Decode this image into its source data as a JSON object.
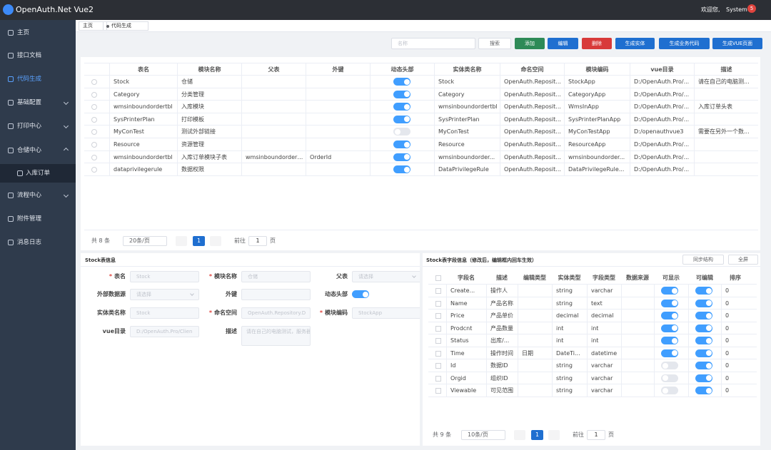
{
  "header": {
    "title": "OpenAuth.Net Vue2",
    "welcome": "欢迎您,",
    "user": "System",
    "badge": "5"
  },
  "sidebar": {
    "items": [
      "主页",
      "接口文档",
      "代码生成",
      "基础配置",
      "打印中心",
      "仓储中心",
      "入库订单",
      "流程中心",
      "附件管理",
      "消息日志"
    ]
  },
  "tabs": [
    "主页",
    "代码生成"
  ],
  "toolbar": {
    "search_placeholder": "名称",
    "buttons": [
      "搜索",
      "添加",
      "编辑",
      "删除",
      "生成实体",
      "生成业务代码",
      "生成VUE页面"
    ]
  },
  "table": {
    "columns": [
      "表名",
      "模块名称",
      "父表",
      "外键",
      "动态头部",
      "实体类名称",
      "命名空间",
      "模块编码",
      "vue目录",
      "描述"
    ],
    "rows": [
      [
        "Stock",
        "仓储",
        null,
        null,
        true,
        "Stock",
        "OpenAuth.Reposit...",
        "StockApp",
        "D:/OpenAuth.Pro/...",
        "请在自己的电脑测..."
      ],
      [
        "Category",
        "分类管理",
        null,
        null,
        true,
        "Category",
        "OpenAuth.Reposit...",
        "CategoryApp",
        "D:/OpenAuth.Pro/...",
        null
      ],
      [
        "wmsinboundordertbl",
        "入库模块",
        null,
        null,
        true,
        "wmsinboundordertbl",
        "OpenAuth.Reposit...",
        "WmsInApp",
        "D:/OpenAuth.Pro/...",
        "入库订单头表"
      ],
      [
        "SysPrinterPlan",
        "打印模板",
        null,
        null,
        true,
        "SysPrinterPlan",
        "OpenAuth.Reposit...",
        "SysPrinterPlanApp",
        "D:/OpenAuth.Pro/...",
        null
      ],
      [
        "MyConTest",
        "测试外部链接",
        null,
        null,
        false,
        "MyConTest",
        "OpenAuth.Reposit...",
        "MyConTestApp",
        "D:/openauthvue3",
        "需要在另外一个数..."
      ],
      [
        "Resource",
        "资源管理",
        null,
        null,
        true,
        "Resource",
        "OpenAuth.Reposit...",
        "ResourceApp",
        "D:/OpenAuth.Pro/...",
        null
      ],
      [
        "wmsinboundordertbl",
        "入库订单模块子表",
        "wmsinboundordertbl",
        "OrderId",
        true,
        "wmsinboundorder...",
        "OpenAuth.Reposit...",
        "wmsinboundorder...",
        "D:/OpenAuth.Pro/...",
        null
      ],
      [
        "dataprivilegerule",
        "数据权限",
        null,
        null,
        true,
        "DataPrivilegeRule",
        "OpenAuth.Reposit...",
        "DataPrivilegeRule...",
        "D:/OpenAuth.Pro/...",
        null
      ]
    ],
    "pagination": {
      "total": "共 8 条",
      "page_size": "20条/页",
      "page": "1",
      "goto": "前往",
      "goto_value": "1",
      "unit": "页"
    }
  },
  "form": {
    "title": "Stock表信息",
    "fields": [
      {
        "required": "*",
        "label": "表名",
        "value": "Stock",
        "kind": "input"
      },
      {
        "required": "*",
        "label": "模块名称",
        "value": "仓储",
        "kind": "input"
      },
      {
        "label": "父表",
        "value": "请选择",
        "kind": "select"
      },
      {
        "label": "外部数据源",
        "value": "请选择",
        "kind": "select"
      },
      {
        "label": "外键",
        "value": null,
        "kind": "input"
      },
      {
        "label": "动态头部",
        "value": true,
        "kind": "toggle"
      },
      {
        "label": "实体类名称",
        "value": "Stock",
        "kind": "input"
      },
      {
        "required": "*",
        "label": "命名空间",
        "value": "OpenAuth.Repository.D",
        "kind": "input"
      },
      {
        "required": "*",
        "label": "模块编码",
        "value": "StockApp",
        "kind": "input"
      },
      {
        "label": "vue目录",
        "value": "D:/OpenAuth.Pro/Clien",
        "kind": "input"
      },
      {
        "label": "描述",
        "value": "请在自己的电脑测试，服务器是看不出效果的",
        "kind": "textarea"
      }
    ]
  },
  "fields_panel": {
    "title": "Stock表字段信息（修改后，编辑框内回车生效）",
    "buttons": [
      "同步结构",
      "全屏"
    ],
    "columns": [
      "字段名",
      "描述",
      "编辑类型",
      "实体类型",
      "字段类型",
      "数据来源",
      "可显示",
      "可编辑",
      "排序"
    ],
    "rows": [
      [
        "Create...",
        "操作人",
        null,
        "string",
        "varchar",
        null,
        true,
        true,
        "0"
      ],
      [
        "Name",
        "产品名称",
        null,
        "string",
        "text",
        null,
        true,
        true,
        "0"
      ],
      [
        "Price",
        "产品单价",
        null,
        "decimal",
        "decimal",
        null,
        true,
        true,
        "0"
      ],
      [
        "Prodcnt",
        "产品数量",
        null,
        "int",
        "int",
        null,
        true,
        true,
        "0"
      ],
      [
        "Status",
        "出库/...",
        null,
        "int",
        "int",
        null,
        true,
        true,
        "0"
      ],
      [
        "Time",
        "操作时间",
        "日期",
        "DateTi...",
        "datetime",
        null,
        true,
        true,
        "0"
      ],
      [
        "Id",
        "数据ID",
        null,
        "string",
        "varchar",
        null,
        false,
        true,
        "0"
      ],
      [
        "Orgid",
        "组织ID",
        null,
        "string",
        "varchar",
        null,
        false,
        true,
        "0"
      ],
      [
        "Viewable",
        "可见范围",
        null,
        "string",
        "varchar",
        null,
        false,
        true,
        "0"
      ]
    ],
    "pagination": {
      "total": "共 9 条",
      "page_size": "10条/页",
      "page": "1",
      "goto": "前往",
      "goto_value": "1",
      "unit": "页"
    }
  }
}
